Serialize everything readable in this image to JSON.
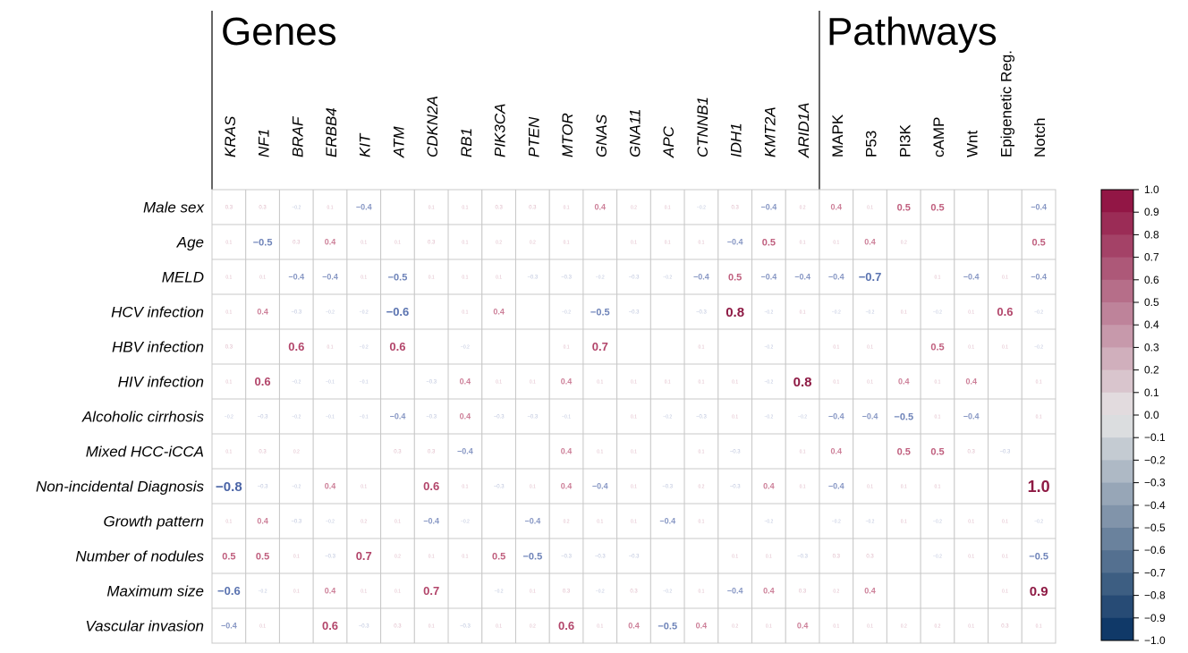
{
  "chart_data": {
    "type": "heatmap",
    "group_labels": [
      {
        "label": "Genes"
      },
      {
        "label": "Pathways"
      }
    ],
    "columns": [
      "KRAS",
      "NF1",
      "BRAF",
      "ERBB4",
      "KIT",
      "ATM",
      "CDKN2A",
      "RB1",
      "PIK3CA",
      "PTEN",
      "MTOR",
      "GNAS",
      "GNA11",
      "APC",
      "CTNNB1",
      "IDH1",
      "KMT2A",
      "ARID1A",
      "MAPK",
      "P53",
      "PI3K",
      "cAMP",
      "Wnt",
      "Epigenetic Reg.",
      "Notch"
    ],
    "italic_columns_count": 18,
    "rows": [
      "Male sex",
      "Age",
      "MELD",
      "HCV infection",
      "HBV infection",
      "HIV infection",
      "Alcoholic cirrhosis",
      "Mixed HCC-iCCA",
      "Non-incidental Diagnosis",
      "Growth pattern",
      "Number of nodules",
      "Maximum size",
      "Vascular invasion"
    ],
    "values": [
      [
        0.3,
        0.3,
        -0.2,
        0.1,
        -0.4,
        null,
        0.1,
        0.1,
        0.3,
        0.3,
        0.1,
        0.4,
        0.2,
        0.1,
        -0.2,
        0.3,
        -0.4,
        0.2,
        0.4,
        0.1,
        0.5,
        0.5,
        null,
        null,
        -0.4
      ],
      [
        0.1,
        -0.5,
        0.3,
        0.4,
        0.1,
        0.1,
        0.3,
        0.1,
        0.2,
        0.2,
        0.1,
        null,
        0.1,
        0.1,
        0.1,
        -0.4,
        0.5,
        0.1,
        0.1,
        0.4,
        0.2,
        null,
        null,
        null,
        0.5
      ],
      [
        0.1,
        0.1,
        -0.4,
        -0.4,
        0.1,
        -0.5,
        0.1,
        0.1,
        0.1,
        -0.3,
        -0.3,
        -0.2,
        -0.3,
        -0.2,
        -0.4,
        0.5,
        -0.4,
        -0.4,
        -0.4,
        -0.7,
        null,
        0.1,
        -0.4,
        0.1,
        -0.4
      ],
      [
        0.1,
        0.4,
        -0.3,
        -0.2,
        -0.2,
        -0.6,
        null,
        0.1,
        0.4,
        null,
        -0.2,
        -0.5,
        -0.3,
        null,
        -0.3,
        0.8,
        -0.2,
        0.1,
        -0.2,
        -0.2,
        0.1,
        -0.2,
        0.1,
        0.6,
        -0.2
      ],
      [
        0.3,
        null,
        0.6,
        0.1,
        -0.2,
        0.6,
        null,
        -0.2,
        null,
        null,
        0.1,
        0.7,
        null,
        null,
        0.1,
        null,
        -0.2,
        null,
        0.1,
        0.1,
        null,
        0.5,
        0.1,
        0.1,
        -0.2
      ],
      [
        0.1,
        0.6,
        -0.2,
        -0.1,
        -0.1,
        null,
        -0.3,
        0.4,
        0.1,
        0.1,
        0.4,
        0.1,
        0.1,
        0.1,
        0.1,
        0.1,
        -0.2,
        0.8,
        0.1,
        0.1,
        0.4,
        0.1,
        0.4,
        null,
        0.1
      ],
      [
        -0.2,
        -0.3,
        -0.2,
        -0.1,
        -0.1,
        -0.4,
        -0.3,
        0.4,
        -0.3,
        -0.3,
        -0.1,
        null,
        0.1,
        -0.2,
        -0.3,
        0.1,
        -0.2,
        -0.2,
        -0.4,
        -0.4,
        -0.5,
        0.1,
        -0.4,
        null,
        0.1
      ],
      [
        0.1,
        0.3,
        0.2,
        null,
        null,
        0.3,
        0.3,
        -0.4,
        null,
        null,
        0.4,
        0.1,
        0.1,
        null,
        0.1,
        -0.3,
        null,
        0.1,
        0.4,
        null,
        0.5,
        0.5,
        0.3,
        -0.3,
        null
      ],
      [
        -0.8,
        -0.3,
        -0.2,
        0.4,
        0.1,
        null,
        0.6,
        0.1,
        -0.3,
        0.1,
        0.4,
        -0.4,
        0.1,
        -0.3,
        0.2,
        -0.3,
        0.4,
        0.1,
        -0.4,
        0.1,
        0.1,
        0.1,
        null,
        null,
        1.0
      ],
      [
        0.1,
        0.4,
        -0.3,
        -0.2,
        0.2,
        0.1,
        -0.4,
        -0.2,
        null,
        -0.4,
        0.2,
        0.1,
        0.1,
        -0.4,
        0.1,
        null,
        -0.2,
        null,
        -0.2,
        -0.2,
        0.1,
        -0.2,
        0.1,
        0.1,
        -0.2
      ],
      [
        0.5,
        0.5,
        0.1,
        -0.3,
        0.7,
        0.2,
        0.1,
        0.1,
        0.5,
        -0.5,
        -0.3,
        -0.3,
        -0.3,
        null,
        null,
        0.1,
        0.1,
        -0.3,
        0.3,
        0.3,
        null,
        -0.2,
        0.1,
        0.1,
        -0.5
      ],
      [
        -0.6,
        -0.2,
        0.1,
        0.4,
        0.1,
        0.1,
        0.7,
        null,
        -0.2,
        0.1,
        0.3,
        -0.2,
        0.3,
        -0.2,
        0.1,
        -0.4,
        0.4,
        0.3,
        0.2,
        0.4,
        null,
        null,
        null,
        0.1,
        0.9
      ],
      [
        -0.4,
        0.1,
        null,
        0.6,
        -0.3,
        0.3,
        0.1,
        -0.3,
        0.1,
        0.2,
        0.6,
        0.1,
        0.4,
        -0.5,
        0.4,
        0.2,
        0.1,
        0.4,
        0.1,
        0.1,
        0.2,
        0.2,
        0.1,
        0.3,
        0.1
      ]
    ],
    "color_scale": {
      "min": -1.0,
      "max": 1.0,
      "neg_color": "#053061",
      "mid_color": "#e6e6e6",
      "pos_color": "#8e0b3c",
      "tick_labels": [
        "1.0",
        "0.9",
        "0.8",
        "0.7",
        "0.6",
        "0.5",
        "0.4",
        "0.3",
        "0.2",
        "0.1",
        "0.0",
        "−0.1",
        "−0.2",
        "−0.3",
        "−0.4",
        "−0.5",
        "−0.6",
        "−0.7",
        "−0.8",
        "−0.9",
        "−1.0"
      ]
    },
    "grid": true,
    "legend": "right"
  }
}
